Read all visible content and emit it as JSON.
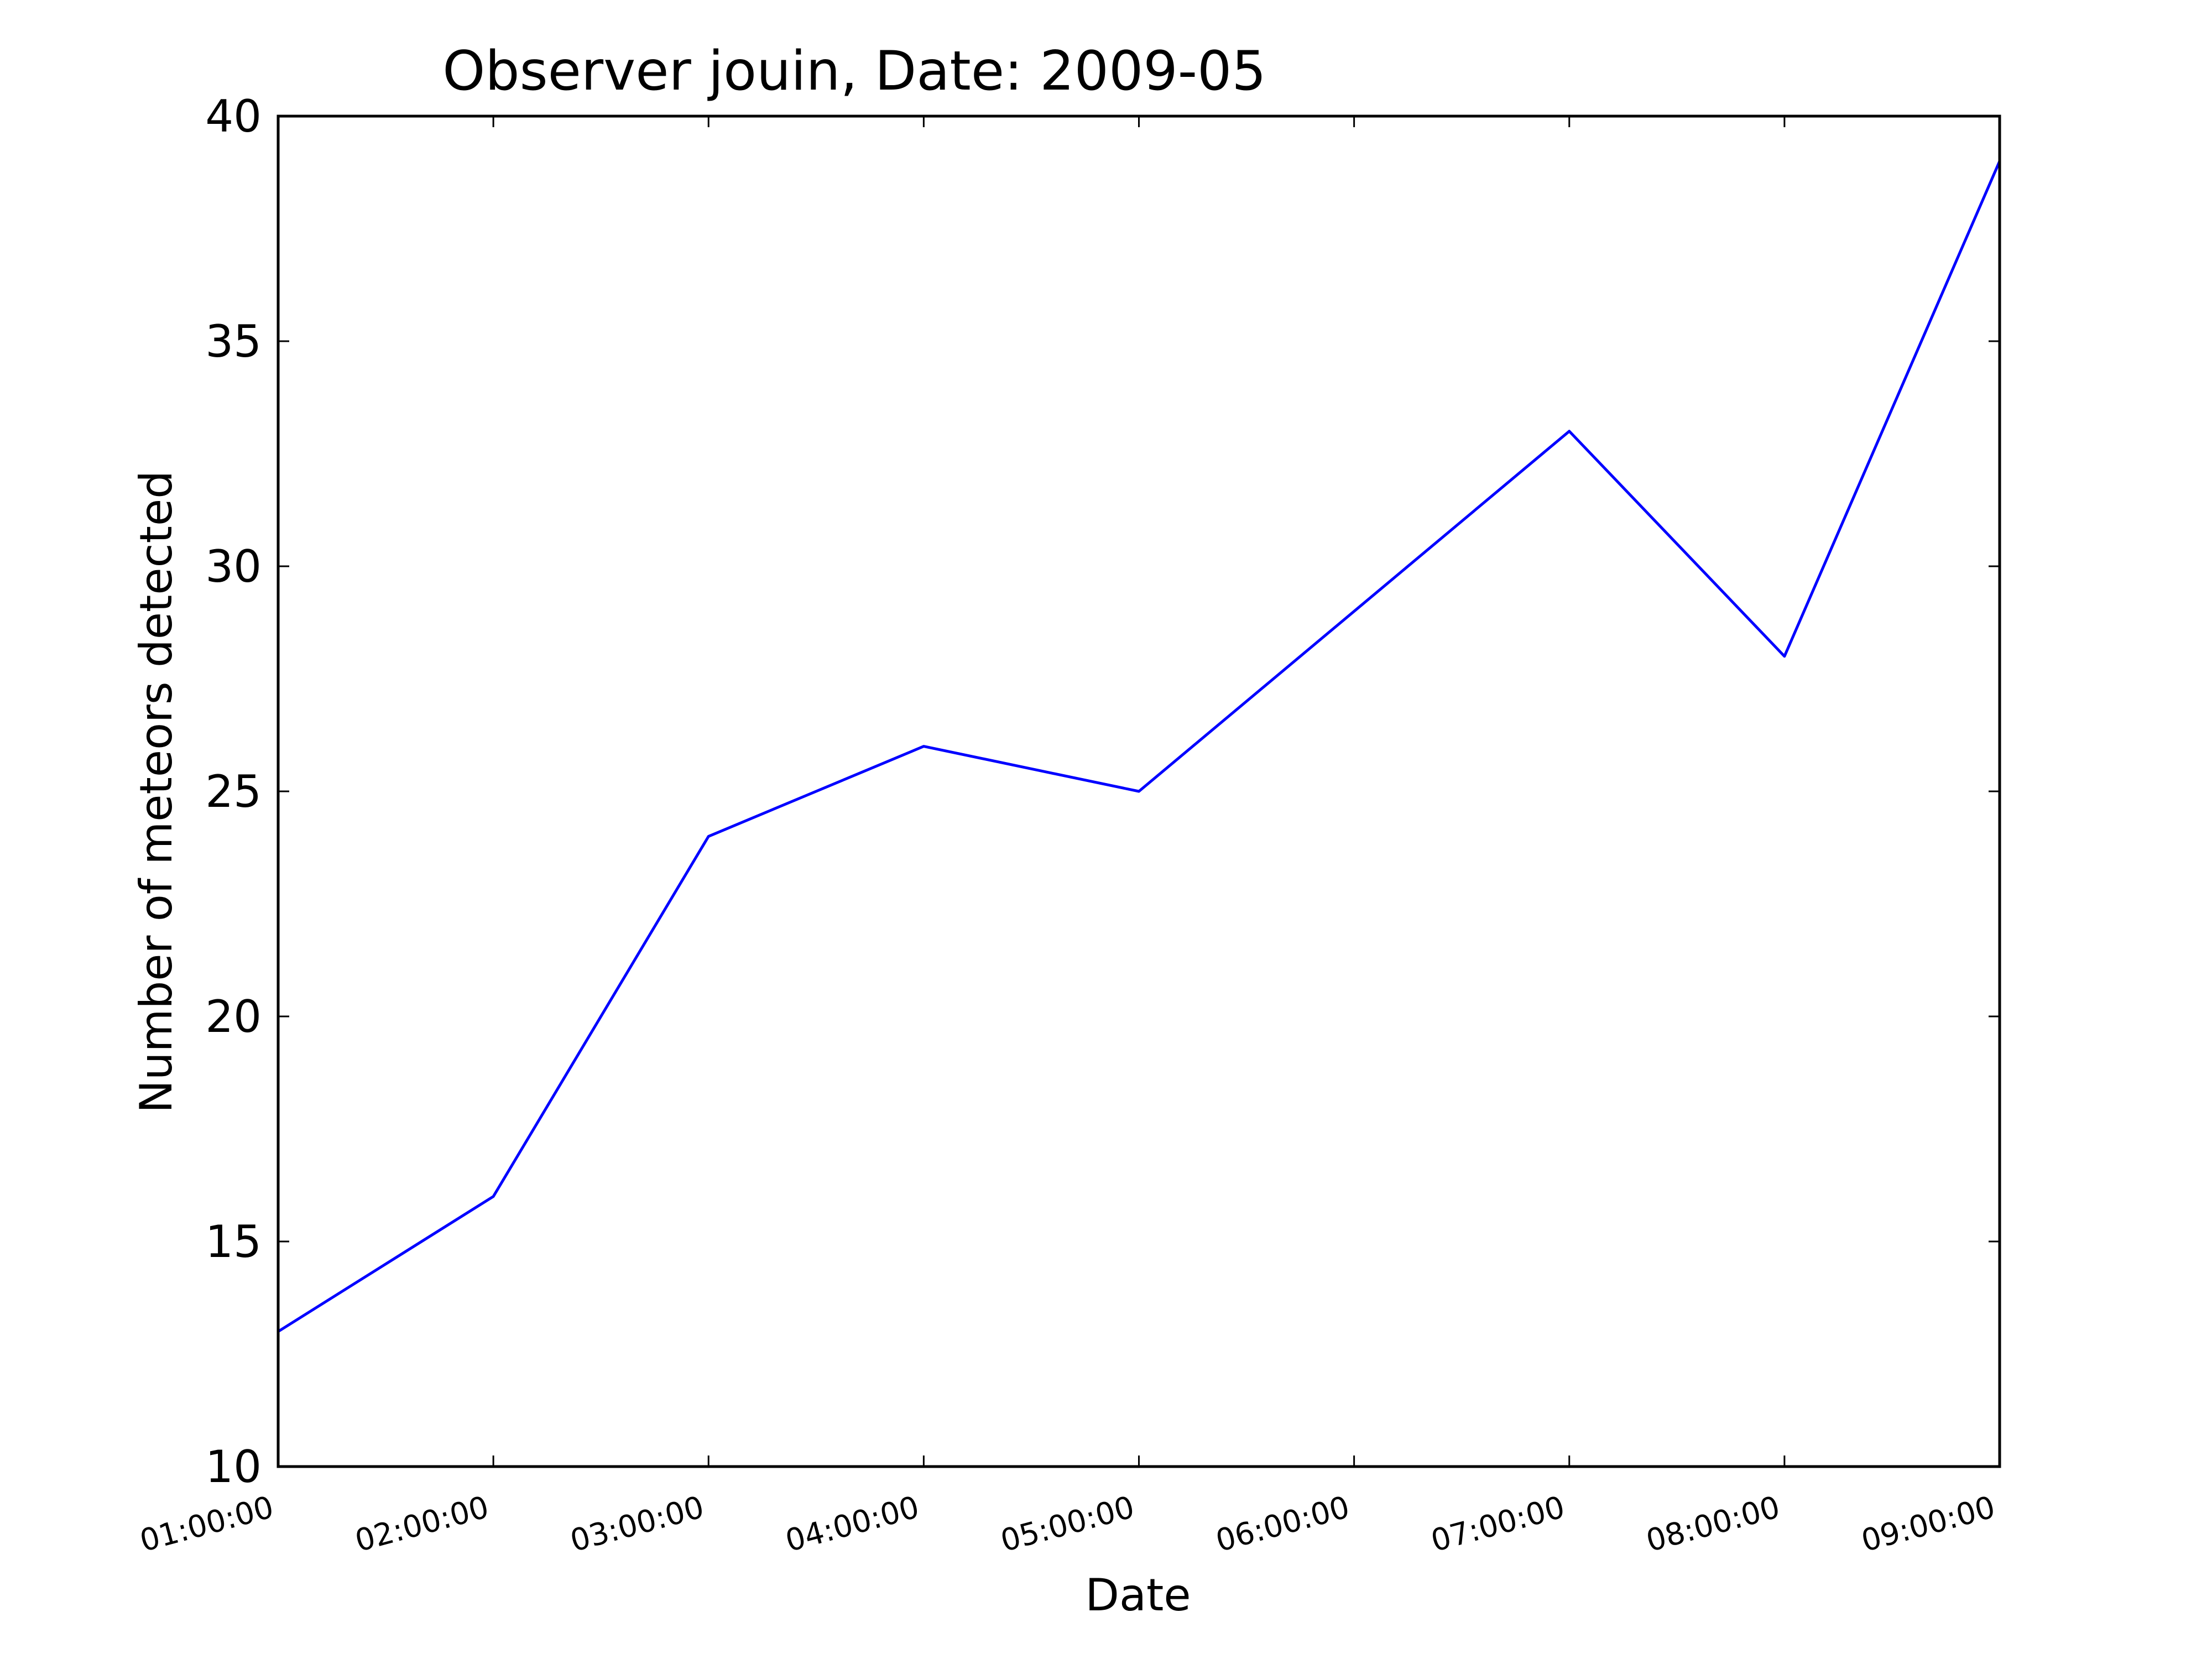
{
  "chart_data": {
    "type": "line",
    "title": "Observer jouin, Date: 2009-05",
    "xlabel": "Date",
    "ylabel": "Number of meteors detected",
    "categories": [
      "01:00:00",
      "02:00:00",
      "03:00:00",
      "04:00:00",
      "05:00:00",
      "06:00:00",
      "07:00:00",
      "08:00:00",
      "09:00:00"
    ],
    "series": [
      {
        "values": [
          13,
          16,
          24,
          26,
          25,
          29,
          33,
          28,
          39
        ],
        "color": "#0000ff"
      }
    ],
    "yticks": [
      "10",
      "15",
      "20",
      "25",
      "30",
      "35",
      "40"
    ],
    "ylim": [
      10,
      40
    ],
    "grid": false,
    "legend": "none"
  }
}
